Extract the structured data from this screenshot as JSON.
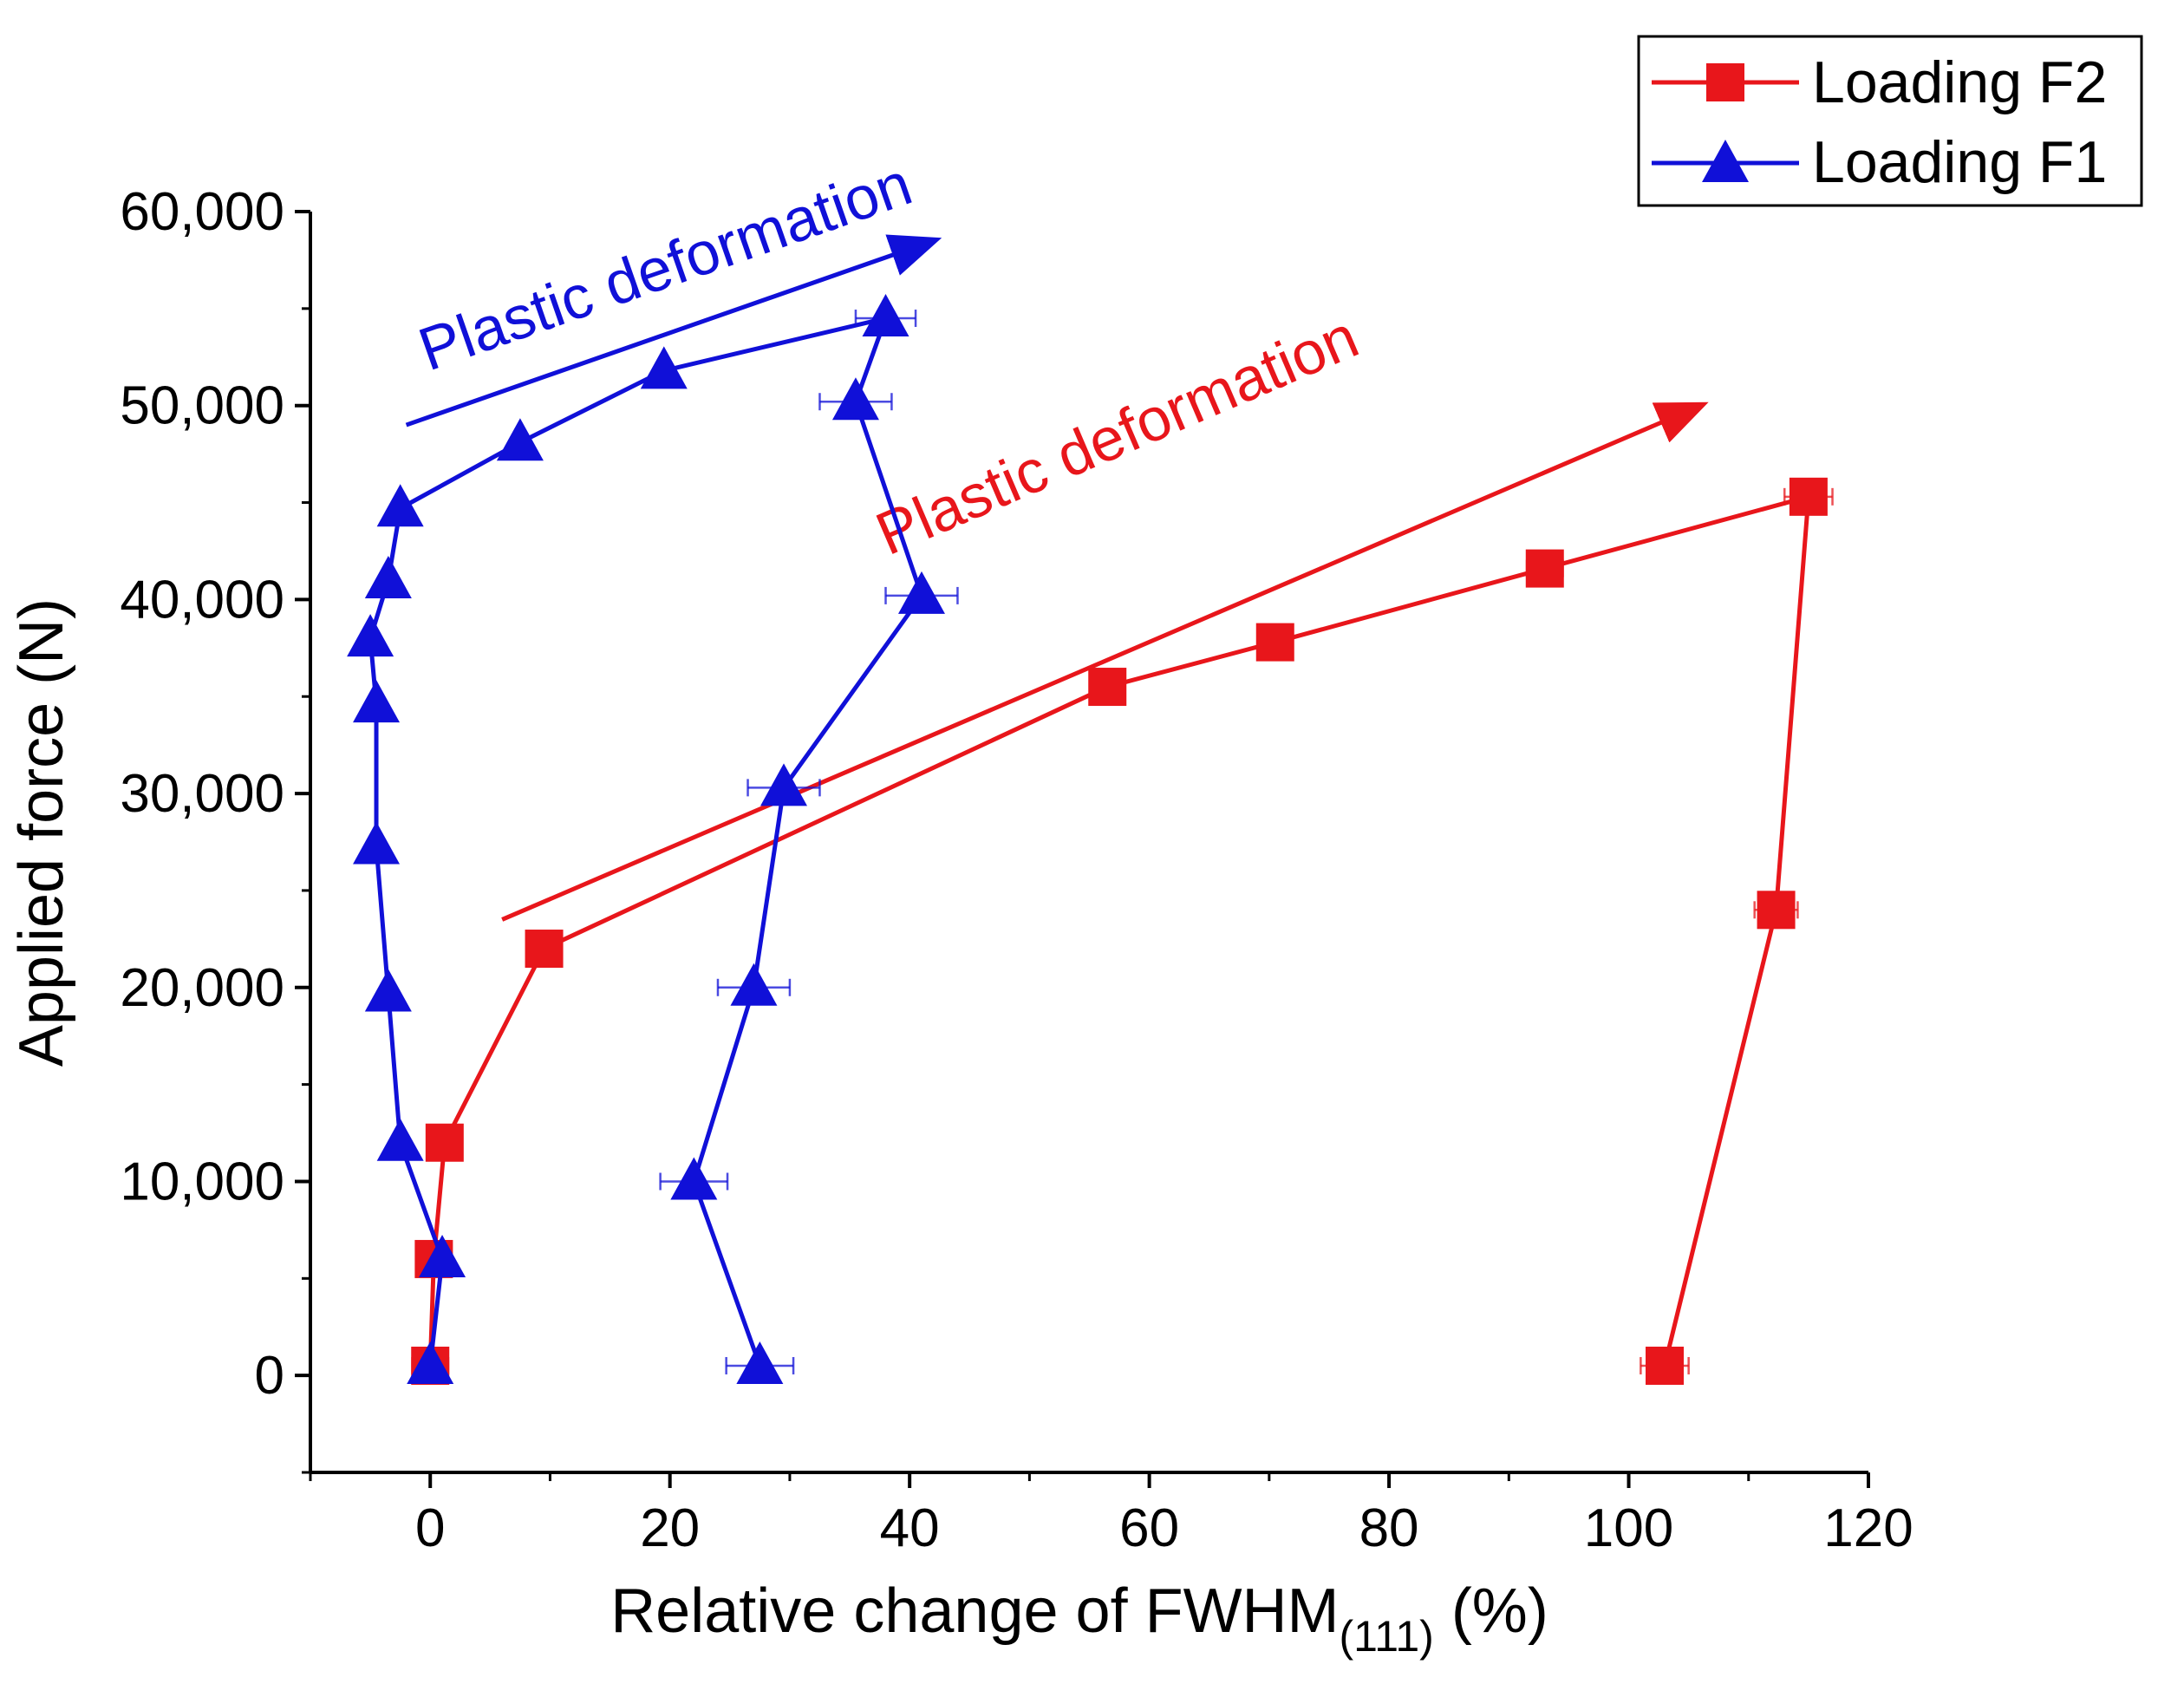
{
  "chart_data": {
    "type": "line",
    "title": "",
    "xlabel": "Relative change of FWHM",
    "xlabel_subscript": "(111)",
    "xlabel_suffix": " (%)",
    "ylabel": "Applied force (N)",
    "xlim": [
      -10,
      120
    ],
    "ylim": [
      -5000,
      60000
    ],
    "x_ticks": [
      0,
      20,
      40,
      60,
      80,
      100,
      120
    ],
    "x_tick_labels": [
      "0",
      "20",
      "40",
      "60",
      "80",
      "100",
      "120"
    ],
    "y_ticks": [
      0,
      10000,
      20000,
      30000,
      40000,
      50000,
      60000
    ],
    "y_tick_labels": [
      "0",
      "10,000",
      "20,000",
      "30,000",
      "40,000",
      "50,000",
      "60,000"
    ],
    "grid": false,
    "legend_position": "top-right",
    "series": [
      {
        "name": "Loading F2",
        "color": "#e8161b",
        "marker": "square",
        "x": [
          0,
          0.3,
          1.2,
          9.5,
          56.5,
          70.5,
          93,
          115,
          112.3,
          103
        ],
        "y": [
          500,
          6000,
          12000,
          22000,
          35500,
          37800,
          41600,
          45300,
          24000,
          500
        ],
        "x_err": [
          1.5,
          0.8,
          0.8,
          1.0,
          1.2,
          1.2,
          1.5,
          2.0,
          1.8,
          2.0
        ]
      },
      {
        "name": "Loading F1",
        "color": "#1010d8",
        "marker": "triangle",
        "x": [
          0,
          1,
          -2.5,
          -3.5,
          -4.5,
          -4.5,
          -5,
          -3.5,
          -2.5,
          7.5,
          19.5,
          38,
          35.5,
          41,
          29.5,
          27,
          22,
          27.5
        ],
        "y": [
          500,
          6000,
          12000,
          19700,
          27300,
          34600,
          38000,
          41000,
          44700,
          48100,
          51800,
          54500,
          50200,
          40200,
          30300,
          20000,
          10000,
          500
        ],
        "x_err": [
          0.5,
          0.5,
          0.3,
          0.3,
          0.3,
          0.3,
          0.3,
          0.3,
          0.3,
          0.5,
          0.5,
          2.5,
          3.0,
          3.0,
          3.0,
          3.0,
          2.8,
          2.8
        ]
      }
    ],
    "annotations": [
      {
        "text": "Plastic deformation",
        "color": "#1010d8",
        "arrow_from": [
          -2,
          49000
        ],
        "arrow_to": [
          42,
          58500
        ]
      },
      {
        "text": "Plastic deformation",
        "color": "#e8161b",
        "arrow_from": [
          6,
          23500
        ],
        "arrow_to": [
          106,
          50000
        ]
      }
    ]
  }
}
